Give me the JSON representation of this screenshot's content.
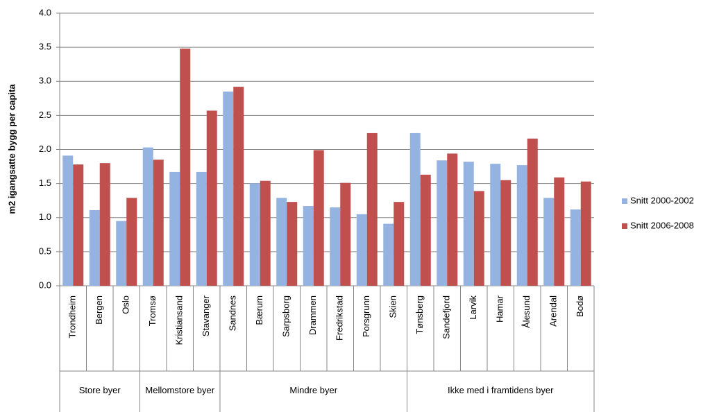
{
  "chart_data": {
    "type": "bar",
    "y_label": "m2 igangsatte bygg per capita",
    "categories": [
      "Trondheim",
      "Bergen",
      "Oslo",
      "Tromsø",
      "Kristiansand",
      "Stavanger",
      "Sandnes",
      "Bærum",
      "Sarpsborg",
      "Drammen",
      "Fredrikstad",
      "Porsgrunn",
      "Skien",
      "Tønsberg",
      "Sandefjord",
      "Larvik",
      "Hamar",
      "Ålesund",
      "Arendal",
      "Bodø"
    ],
    "groups": [
      {
        "label": "Store byer",
        "count": 3
      },
      {
        "label": "Mellomstore byer",
        "count": 3
      },
      {
        "label": "Mindre byer",
        "count": 7
      },
      {
        "label": "Ikke med i framtidens byer",
        "count": 7
      }
    ],
    "series": [
      {
        "name": "Snitt 2000-2002",
        "color": "#95b3e0",
        "values": [
          1.91,
          1.11,
          0.95,
          2.03,
          1.67,
          1.67,
          2.85,
          1.5,
          1.29,
          1.17,
          1.15,
          1.05,
          0.91,
          2.24,
          1.84,
          1.82,
          1.79,
          1.77,
          1.29,
          1.12
        ]
      },
      {
        "name": "Snitt 2006-2008",
        "color": "#c0504d",
        "values": [
          1.78,
          1.8,
          1.29,
          1.85,
          3.48,
          2.57,
          2.92,
          1.54,
          1.23,
          1.99,
          1.51,
          2.24,
          1.23,
          1.63,
          1.94,
          1.39,
          1.55,
          2.16,
          1.59,
          1.53
        ]
      }
    ],
    "ylim": [
      0,
      4
    ],
    "yticks": [
      {
        "value": 0,
        "label": "0.0"
      },
      0.5,
      {
        "value": 1,
        "label": "1.0"
      },
      1.5,
      {
        "value": 2,
        "label": "2.0"
      },
      2.5,
      {
        "value": 3,
        "label": "3.0"
      },
      3.5,
      {
        "value": 4,
        "label": "4.0"
      }
    ],
    "grid": true,
    "legend": "right"
  }
}
